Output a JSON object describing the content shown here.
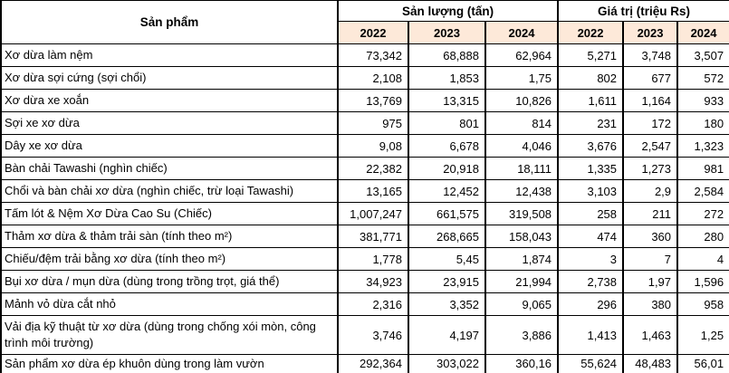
{
  "colors": {
    "product_header_bg": "#DCDAE8",
    "year_row_bg": "#FDE9D9",
    "border": "#000000",
    "cell_bg": "#FFFFFF",
    "text": "#000000"
  },
  "table": {
    "product_header": "Sản phẩm",
    "groups": [
      {
        "label": "Sản lượng (tấn)",
        "years": [
          "2022",
          "2023",
          "2024"
        ]
      },
      {
        "label": "Giá trị (triệu Rs)",
        "years": [
          "2022",
          "2023",
          "2024"
        ]
      }
    ],
    "rows": [
      {
        "label": "Xơ dừa làm nệm",
        "values": [
          "73,342",
          "68,888",
          "62,964",
          "5,271",
          "3,748",
          "3,507"
        ]
      },
      {
        "label": "Xơ dừa sợi cứng (sợi chổi)",
        "values": [
          "2,108",
          "1,853",
          "1,75",
          "802",
          "677",
          "572"
        ]
      },
      {
        "label": "Xơ dừa xe xoắn",
        "values": [
          "13,769",
          "13,315",
          "10,826",
          "1,611",
          "1,164",
          "933"
        ]
      },
      {
        "label": "Sợi xe xơ dừa",
        "values": [
          "975",
          "801",
          "814",
          "231",
          "172",
          "180"
        ]
      },
      {
        "label": "Dây xe xơ dừa",
        "values": [
          "9,08",
          "6,678",
          "4,046",
          "3,676",
          "2,547",
          "1,323"
        ]
      },
      {
        "label": "Bàn chải Tawashi (nghìn chiếc)",
        "values": [
          "22,382",
          "20,918",
          "18,111",
          "1,335",
          "1,273",
          "981"
        ]
      },
      {
        "label": "Chổi và bàn chải xơ dừa (nghìn chiếc, trừ loại Tawashi)",
        "values": [
          "13,165",
          "12,452",
          "12,438",
          "3,103",
          "2,9",
          "2,584"
        ]
      },
      {
        "label": "Tấm lót & Nệm Xơ Dừa Cao Su (Chiếc)",
        "values": [
          "1,007,247",
          "661,575",
          "319,508",
          "258",
          "211",
          "272"
        ]
      },
      {
        "label": "Thảm xơ dừa & thảm trải sàn (tính theo m²)",
        "values": [
          "381,771",
          "268,665",
          "158,043",
          "474",
          "360",
          "280"
        ]
      },
      {
        "label": "Chiếu/đệm trải bằng xơ dừa (tính theo m²)",
        "values": [
          "1,778",
          "5,45",
          "1,874",
          "3",
          "7",
          "4"
        ]
      },
      {
        "label": "Bụi xơ dừa / mụn dừa (dùng trong trồng trọt, giá thể)",
        "values": [
          "34,923",
          "23,915",
          "21,994",
          "2,738",
          "1,97",
          "1,596"
        ]
      },
      {
        "label": "Mảnh vỏ dừa cắt nhỏ",
        "values": [
          "2,316",
          "3,352",
          "9,065",
          "296",
          "380",
          "958"
        ]
      },
      {
        "label": "Vải địa kỹ thuật từ xơ dừa (dùng trong chống xói mòn, công trình môi trường)",
        "values": [
          "3,746",
          "4,197",
          "3,886",
          "1,413",
          "1,463",
          "1,25"
        ]
      },
      {
        "label": "Sản phẩm xơ dừa ép khuôn dùng trong làm vườn",
        "values": [
          "292,364",
          "303,022",
          "360,16",
          "55,624",
          "48,483",
          "56,01"
        ]
      }
    ]
  },
  "chart_data": {
    "type": "table",
    "title": "Sản phẩm xơ dừa: Sản lượng (tấn) và Giá trị (triệu Rs), 2022-2024",
    "columns": [
      "Sản phẩm",
      "Sản lượng (tấn) 2022",
      "Sản lượng (tấn) 2023",
      "Sản lượng (tấn) 2024",
      "Giá trị (triệu Rs) 2022",
      "Giá trị (triệu Rs) 2023",
      "Giá trị (triệu Rs) 2024"
    ],
    "rows": [
      [
        "Xơ dừa làm nệm",
        "73,342",
        "68,888",
        "62,964",
        "5,271",
        "3,748",
        "3,507"
      ],
      [
        "Xơ dừa sợi cứng (sợi chổi)",
        "2,108",
        "1,853",
        "1,75",
        "802",
        "677",
        "572"
      ],
      [
        "Xơ dừa xe xoắn",
        "13,769",
        "13,315",
        "10,826",
        "1,611",
        "1,164",
        "933"
      ],
      [
        "Sợi xe xơ dừa",
        "975",
        "801",
        "814",
        "231",
        "172",
        "180"
      ],
      [
        "Dây xe xơ dừa",
        "9,08",
        "6,678",
        "4,046",
        "3,676",
        "2,547",
        "1,323"
      ],
      [
        "Bàn chải Tawashi (nghìn chiếc)",
        "22,382",
        "20,918",
        "18,111",
        "1,335",
        "1,273",
        "981"
      ],
      [
        "Chổi và bàn chải xơ dừa (nghìn chiếc, trừ loại Tawashi)",
        "13,165",
        "12,452",
        "12,438",
        "3,103",
        "2,9",
        "2,584"
      ],
      [
        "Tấm lót & Nệm Xơ Dừa Cao Su (Chiếc)",
        "1,007,247",
        "661,575",
        "319,508",
        "258",
        "211",
        "272"
      ],
      [
        "Thảm xơ dừa & thảm trải sàn (tính theo m²)",
        "381,771",
        "268,665",
        "158,043",
        "474",
        "360",
        "280"
      ],
      [
        "Chiếu/đệm trải bằng xơ dừa (tính theo m²)",
        "1,778",
        "5,45",
        "1,874",
        "3",
        "7",
        "4"
      ],
      [
        "Bụi xơ dừa / mụn dừa (dùng trong trồng trọt, giá thể)",
        "34,923",
        "23,915",
        "21,994",
        "2,738",
        "1,97",
        "1,596"
      ],
      [
        "Mảnh vỏ dừa cắt nhỏ",
        "2,316",
        "3,352",
        "9,065",
        "296",
        "380",
        "958"
      ],
      [
        "Vải địa kỹ thuật từ xơ dừa (dùng trong chống xói mòn, công trình môi trường)",
        "3,746",
        "4,197",
        "3,886",
        "1,413",
        "1,463",
        "1,25"
      ],
      [
        "Sản phẩm xơ dừa ép khuôn dùng trong làm vườn",
        "292,364",
        "303,022",
        "360,16",
        "55,624",
        "48,483",
        "56,01"
      ]
    ]
  }
}
